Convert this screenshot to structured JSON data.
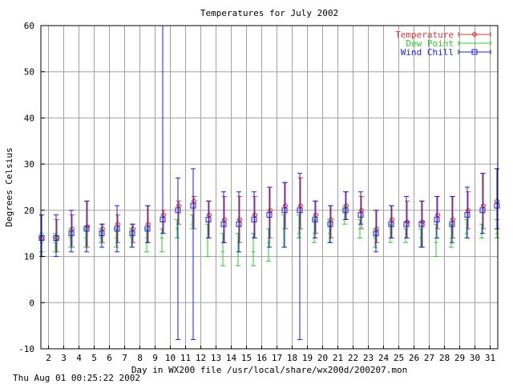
{
  "footer": {
    "timestamp": "Thu Aug 01 00:25:22 2002"
  },
  "colors": {
    "temperature": "#d83a3a",
    "dew_point": "#2ec82e",
    "wind_chill": "#1e1ee0",
    "grid": "#a0a0a0"
  },
  "chart_data": {
    "type": "line",
    "title": "Temperatures for July 2002",
    "xlabel": "Day in WX200 file /usr/local/share/wx200d/200207.mon",
    "ylabel": "Degrees Celsius",
    "xlim": [
      1.5,
      31.5
    ],
    "ylim": [
      -10,
      60
    ],
    "xticks": [
      2,
      3,
      4,
      5,
      6,
      7,
      8,
      9,
      10,
      11,
      12,
      13,
      14,
      15,
      16,
      17,
      18,
      19,
      20,
      21,
      22,
      23,
      24,
      25,
      26,
      27,
      28,
      29,
      30,
      31
    ],
    "yticks": [
      -10,
      0,
      10,
      20,
      30,
      40,
      50,
      60
    ],
    "grid": true,
    "legend_position": "top-right",
    "series": [
      {
        "name": "Temperature",
        "marker": "diamond",
        "points": [
          {
            "x": 1.5,
            "y": 14,
            "low": 10,
            "high": 19
          },
          {
            "x": 2.5,
            "y": 14,
            "low": 11,
            "high": 18
          },
          {
            "x": 3.5,
            "y": 16,
            "low": 12,
            "high": 19
          },
          {
            "x": 4.5,
            "y": 16.5,
            "low": 12,
            "high": 22
          },
          {
            "x": 5.5,
            "y": 16,
            "low": 13,
            "high": 17
          },
          {
            "x": 6.5,
            "y": 17,
            "low": 13,
            "high": 19
          },
          {
            "x": 7.5,
            "y": 16,
            "low": 13,
            "high": 17
          },
          {
            "x": 8.5,
            "y": 17,
            "low": 13,
            "high": 21
          },
          {
            "x": 9.5,
            "y": 19,
            "low": 15,
            "high": 20
          },
          {
            "x": 10.5,
            "y": 21,
            "low": 17,
            "high": 22
          },
          {
            "x": 11.5,
            "y": 22,
            "low": 16,
            "high": 23
          },
          {
            "x": 12.5,
            "y": 19,
            "low": 14,
            "high": 22
          },
          {
            "x": 13.5,
            "y": 18,
            "low": 13,
            "high": 23
          },
          {
            "x": 14.5,
            "y": 18,
            "low": 13,
            "high": 23
          },
          {
            "x": 15.5,
            "y": 19,
            "low": 14,
            "high": 23
          },
          {
            "x": 16.5,
            "y": 20,
            "low": 14,
            "high": 25
          },
          {
            "x": 17.5,
            "y": 21,
            "low": 16,
            "high": 26
          },
          {
            "x": 18.5,
            "y": 21,
            "low": 16,
            "high": 27
          },
          {
            "x": 19.5,
            "y": 19,
            "low": 15,
            "high": 22
          },
          {
            "x": 20.5,
            "y": 18,
            "low": 14,
            "high": 21
          },
          {
            "x": 21.5,
            "y": 21,
            "low": 18,
            "high": 24
          },
          {
            "x": 22.5,
            "y": 20,
            "low": 16,
            "high": 23
          },
          {
            "x": 23.5,
            "y": 16,
            "low": 13,
            "high": 20
          },
          {
            "x": 24.5,
            "y": 18,
            "low": 14,
            "high": 21
          },
          {
            "x": 25.5,
            "y": 17.5,
            "low": 14,
            "high": 22
          },
          {
            "x": 26.5,
            "y": 17.5,
            "low": 12,
            "high": 22
          },
          {
            "x": 27.5,
            "y": 19,
            "low": 16,
            "high": 23
          },
          {
            "x": 28.5,
            "y": 18,
            "low": 14,
            "high": 23
          },
          {
            "x": 29.5,
            "y": 20,
            "low": 16,
            "high": 24
          },
          {
            "x": 30.5,
            "y": 21,
            "low": 16,
            "high": 28
          },
          {
            "x": 31.5,
            "y": 22,
            "low": 16,
            "high": 29
          }
        ]
      },
      {
        "name": "Dew Point",
        "marker": "none",
        "points": [
          {
            "x": 1.5,
            "y": 13,
            "low": 11,
            "high": 15
          },
          {
            "x": 2.5,
            "y": 13,
            "low": 11,
            "high": 15
          },
          {
            "x": 3.5,
            "y": 14,
            "low": 12,
            "high": 16
          },
          {
            "x": 4.5,
            "y": 14,
            "low": 12,
            "high": 16
          },
          {
            "x": 5.5,
            "y": 14,
            "low": 13,
            "high": 16
          },
          {
            "x": 6.5,
            "y": 14,
            "low": 12,
            "high": 16
          },
          {
            "x": 7.5,
            "y": 14,
            "low": 12,
            "high": 16
          },
          {
            "x": 8.5,
            "y": 14,
            "low": 11,
            "high": 16
          },
          {
            "x": 9.5,
            "y": 14,
            "low": 11,
            "high": 16
          },
          {
            "x": 10.5,
            "y": 16,
            "low": 14,
            "high": 18
          },
          {
            "x": 11.5,
            "y": 17,
            "low": 16,
            "high": 19
          },
          {
            "x": 12.5,
            "y": 14,
            "low": 10,
            "high": 17
          },
          {
            "x": 13.5,
            "y": 11,
            "low": 8,
            "high": 15
          },
          {
            "x": 14.5,
            "y": 11,
            "low": 8,
            "high": 15
          },
          {
            "x": 15.5,
            "y": 11,
            "low": 8,
            "high": 15
          },
          {
            "x": 16.5,
            "y": 13,
            "low": 9,
            "high": 16
          },
          {
            "x": 17.5,
            "y": 16,
            "low": 12,
            "high": 19
          },
          {
            "x": 18.5,
            "y": 15,
            "low": 14,
            "high": 19
          },
          {
            "x": 19.5,
            "y": 15,
            "low": 13,
            "high": 18
          },
          {
            "x": 20.5,
            "y": 15,
            "low": 13,
            "high": 18
          },
          {
            "x": 21.5,
            "y": 18,
            "low": 17,
            "high": 21
          },
          {
            "x": 22.5,
            "y": 16,
            "low": 14,
            "high": 18
          },
          {
            "x": 23.5,
            "y": 14,
            "low": 12,
            "high": 16
          },
          {
            "x": 24.5,
            "y": 14,
            "low": 13,
            "high": 17
          },
          {
            "x": 25.5,
            "y": 14,
            "low": 13,
            "high": 16
          },
          {
            "x": 26.5,
            "y": 14,
            "low": 12,
            "high": 16
          },
          {
            "x": 27.5,
            "y": 13,
            "low": 10,
            "high": 17
          },
          {
            "x": 28.5,
            "y": 14,
            "low": 12,
            "high": 17
          },
          {
            "x": 29.5,
            "y": 15,
            "low": 14,
            "high": 18
          },
          {
            "x": 30.5,
            "y": 15,
            "low": 14,
            "high": 17
          },
          {
            "x": 31.5,
            "y": 15,
            "low": 14,
            "high": 18
          }
        ]
      },
      {
        "name": "Wind Chill",
        "marker": "square",
        "points": [
          {
            "x": 1.5,
            "y": 14,
            "low": 10,
            "high": 19
          },
          {
            "x": 2.5,
            "y": 14,
            "low": 10,
            "high": 19
          },
          {
            "x": 3.5,
            "y": 15,
            "low": 11,
            "high": 20
          },
          {
            "x": 4.5,
            "y": 16,
            "low": 11,
            "high": 22
          },
          {
            "x": 5.5,
            "y": 15,
            "low": 12,
            "high": 17
          },
          {
            "x": 6.5,
            "y": 16,
            "low": 11,
            "high": 21
          },
          {
            "x": 7.5,
            "y": 15,
            "low": 12,
            "high": 17
          },
          {
            "x": 8.5,
            "y": 16,
            "low": 13,
            "high": 21
          },
          {
            "x": 9.5,
            "y": 18,
            "low": 15,
            "high": 60
          },
          {
            "x": 10.5,
            "y": 20,
            "low": -8,
            "high": 27
          },
          {
            "x": 11.5,
            "y": 21,
            "low": -8,
            "high": 29
          },
          {
            "x": 12.5,
            "y": 18,
            "low": 14,
            "high": 22
          },
          {
            "x": 13.5,
            "y": 17,
            "low": 13,
            "high": 24
          },
          {
            "x": 14.5,
            "y": 17,
            "low": 11,
            "high": 24
          },
          {
            "x": 15.5,
            "y": 18,
            "low": 14,
            "high": 24
          },
          {
            "x": 16.5,
            "y": 19,
            "low": 12,
            "high": 25
          },
          {
            "x": 17.5,
            "y": 20,
            "low": 12,
            "high": 26
          },
          {
            "x": 18.5,
            "y": 20,
            "low": -8,
            "high": 28
          },
          {
            "x": 19.5,
            "y": 18,
            "low": 14,
            "high": 22
          },
          {
            "x": 20.5,
            "y": 17,
            "low": 13,
            "high": 21
          },
          {
            "x": 21.5,
            "y": 20,
            "low": 18,
            "high": 24
          },
          {
            "x": 22.5,
            "y": 19,
            "low": 17,
            "high": 24
          },
          {
            "x": 23.5,
            "y": 15,
            "low": 11,
            "high": 20
          },
          {
            "x": 24.5,
            "y": 17,
            "low": 14,
            "high": 21
          },
          {
            "x": 25.5,
            "y": 17,
            "low": 14,
            "high": 23
          },
          {
            "x": 26.5,
            "y": 17,
            "low": 12,
            "high": 22
          },
          {
            "x": 27.5,
            "y": 18,
            "low": 14,
            "high": 23
          },
          {
            "x": 28.5,
            "y": 17,
            "low": 13,
            "high": 23
          },
          {
            "x": 29.5,
            "y": 19,
            "low": 14,
            "high": 25
          },
          {
            "x": 30.5,
            "y": 20,
            "low": 15,
            "high": 28
          },
          {
            "x": 31.5,
            "y": 21,
            "low": 16,
            "high": 29
          }
        ]
      }
    ]
  }
}
